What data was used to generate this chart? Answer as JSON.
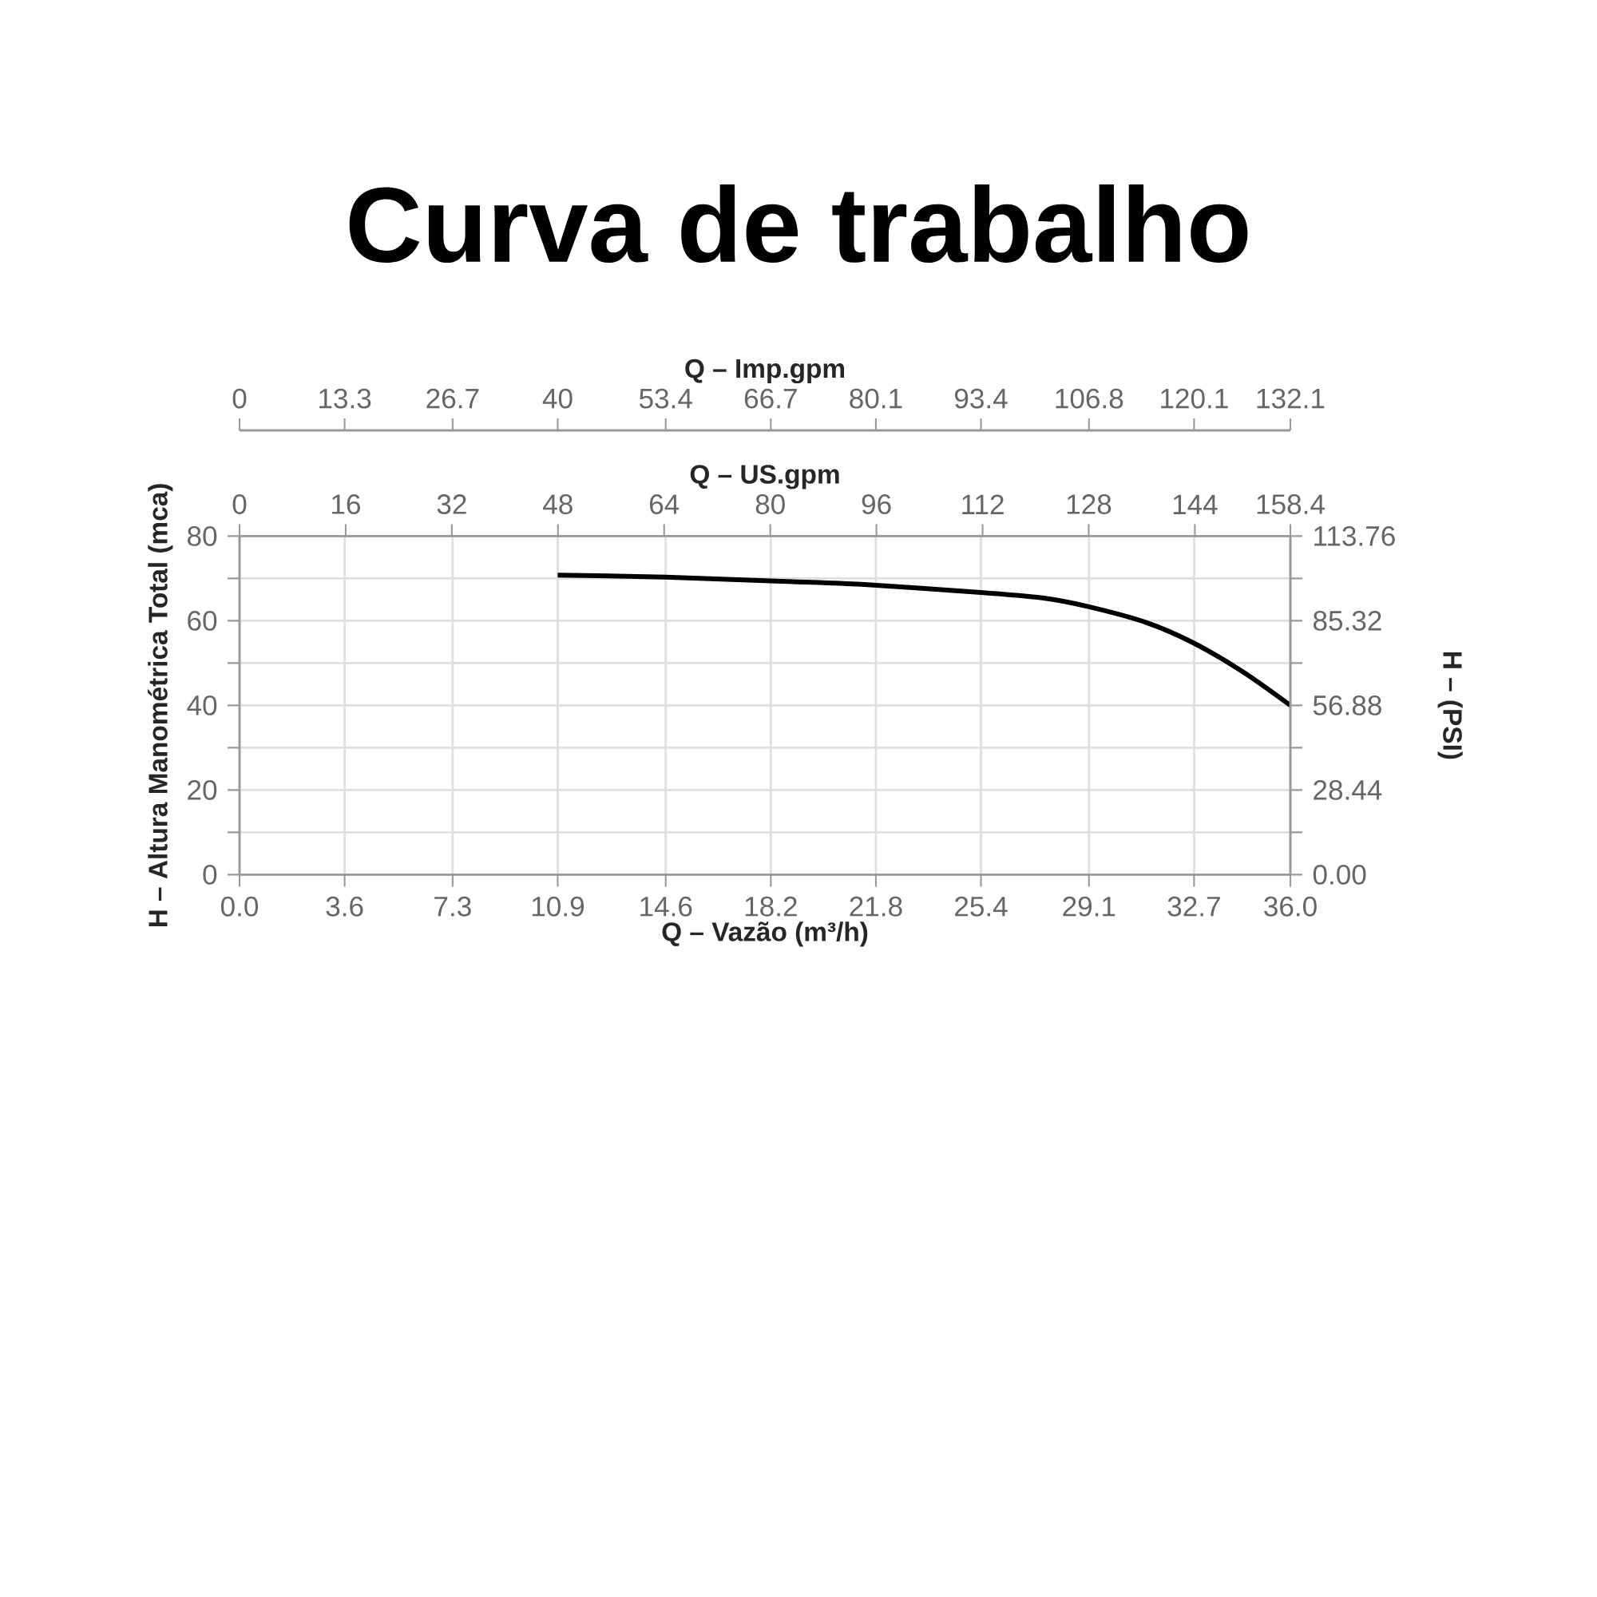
{
  "chart_data": {
    "type": "line",
    "title": "Curva de trabalho",
    "xlabel": "Q – Vazão (m³/h)",
    "ylabel": "H – Altura Manométrica Total (mca)",
    "y2label": "H – (PSI)",
    "x2label": "Q – US.gpm",
    "xlim": [
      0,
      36
    ],
    "xticks": [
      {
        "value": 0,
        "label": "0.0"
      },
      3.6,
      7.3,
      10.9,
      14.6,
      18.2,
      21.8,
      25.4,
      29.1,
      32.7,
      {
        "value": 36,
        "label": "36.0"
      }
    ],
    "ylim": [
      0,
      80
    ],
    "yticks": [
      0,
      {
        "value": 10,
        "label": null
      },
      20,
      {
        "value": 30,
        "label": null
      },
      40,
      {
        "value": 50,
        "label": null
      },
      60,
      {
        "value": 70,
        "label": null
      },
      80
    ],
    "y2lim": [
      0,
      113.76
    ],
    "y2ticks": [
      {
        "value": 0,
        "label": "0.00"
      },
      {
        "value": 14.22,
        "label": null
      },
      28.44,
      {
        "value": 42.66,
        "label": null
      },
      56.88,
      {
        "value": 71.1,
        "label": null
      },
      85.32,
      {
        "value": 99.54,
        "label": null
      },
      113.76
    ],
    "x2lim": [
      0,
      158.4
    ],
    "x2ticks": [
      0,
      16,
      32,
      48,
      64,
      80,
      96,
      112,
      128,
      144,
      158.4
    ],
    "annotations": [
      "Q – Imp.gpm",
      "0",
      "13.3",
      "26.7",
      "40",
      "53.4",
      "66.7",
      "80.1",
      "93.4",
      "106.8",
      "120.1",
      "132.1"
    ],
    "grid": true,
    "series": [
      {
        "color": "#000000",
        "x": [
          10.9,
          14.6,
          18.2,
          21.3,
          25.4,
          27.5,
          29.1,
          31.1,
          32.7,
          34.4,
          36.0
        ],
        "values": [
          70.8,
          70.3,
          69.4,
          68.6,
          66.7,
          65.4,
          63.3,
          59.5,
          54.7,
          47.8,
          40.0
        ]
      }
    ]
  }
}
